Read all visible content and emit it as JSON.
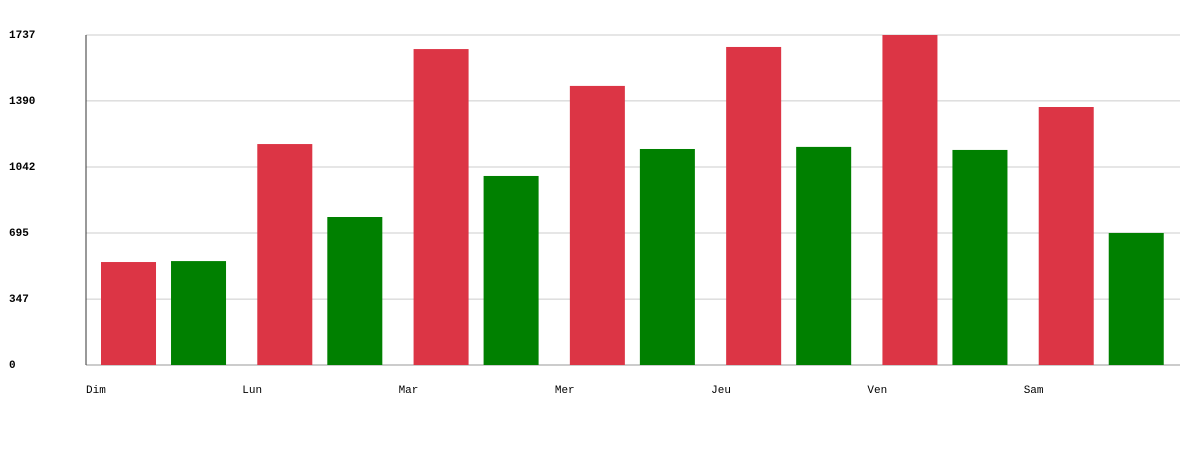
{
  "chart_data": {
    "type": "bar",
    "categories": [
      "Dim",
      "Lun",
      "Mar",
      "Mer",
      "Jeu",
      "Ven",
      "Sam"
    ],
    "series": [
      {
        "color": "#dc3545",
        "values": [
          542,
          1163,
          1663,
          1469,
          1674,
          1737,
          1358
        ]
      },
      {
        "color": "#008000",
        "values": [
          547,
          779,
          995,
          1137,
          1148,
          1132,
          695
        ]
      }
    ],
    "ylim": [
      0,
      1737
    ],
    "yticks": [
      0,
      347,
      695,
      1042,
      1390,
      1737
    ],
    "grid": true
  }
}
